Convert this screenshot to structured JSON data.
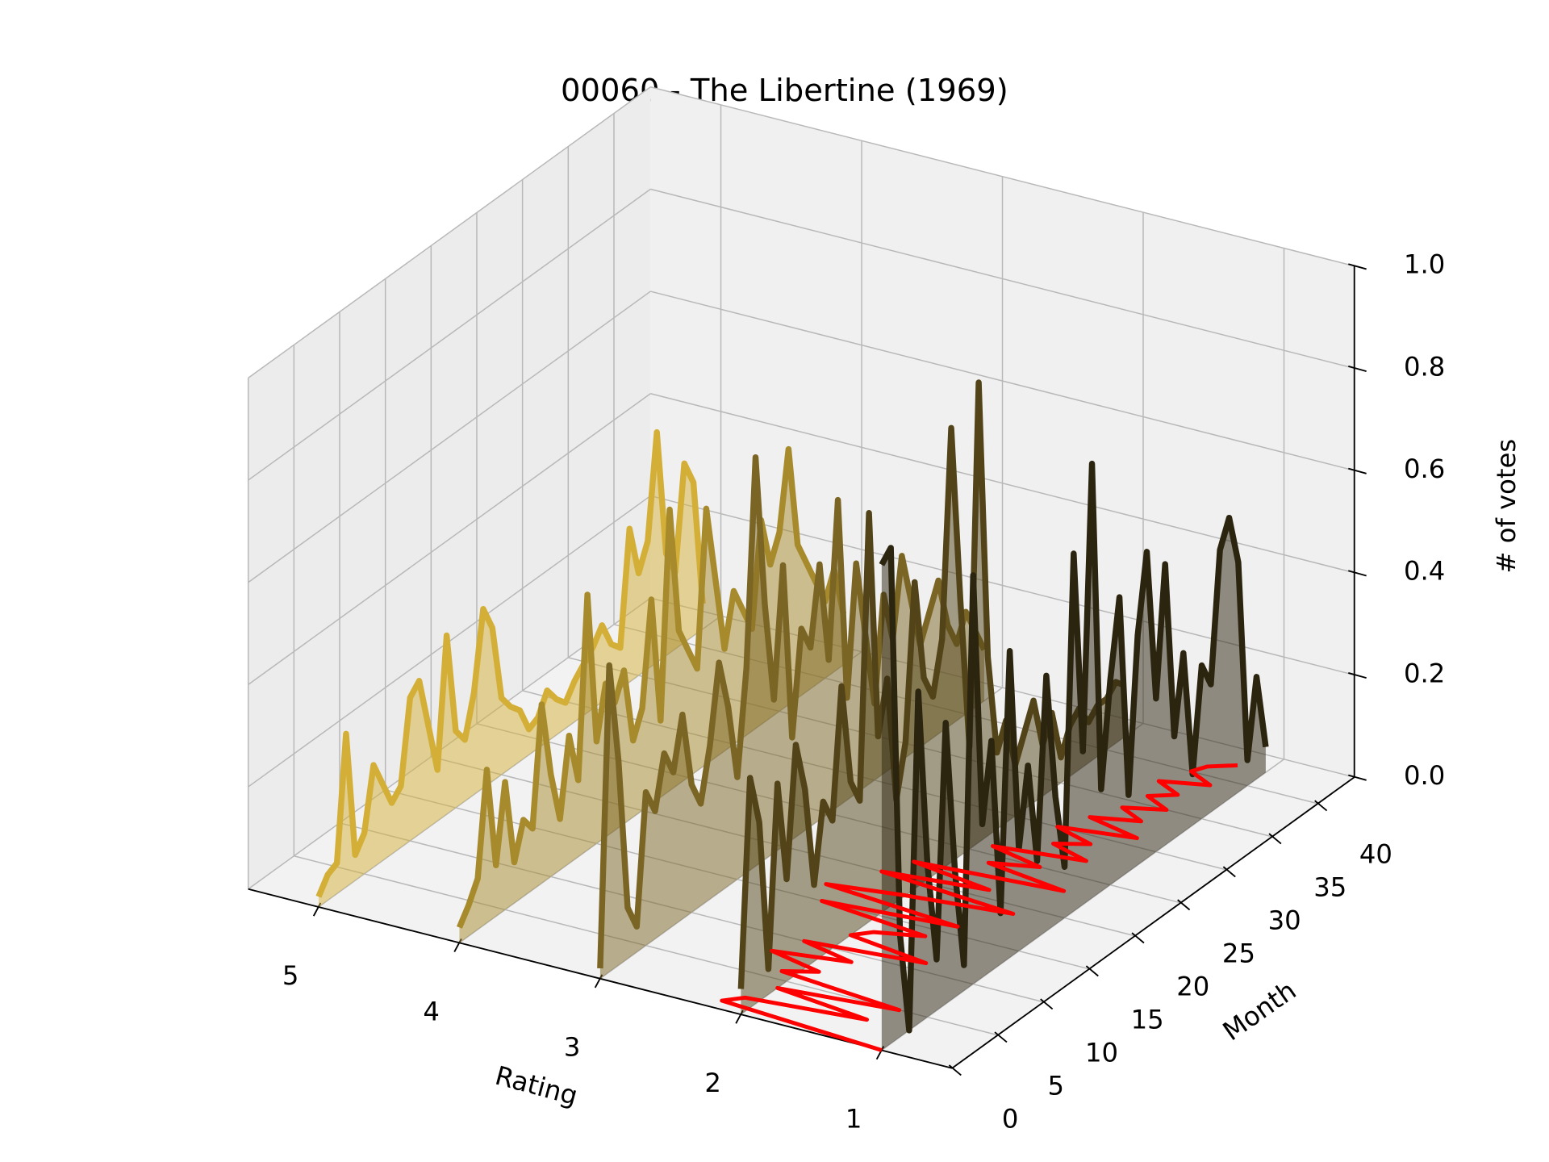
{
  "chart_data": {
    "type": "line3d",
    "title": "00060 - The Libertine (1969)",
    "xlabel": "Rating",
    "ylabel": "Month",
    "zlabel": "# of votes",
    "xlim": [
      0.5,
      5.5
    ],
    "xticks": [
      1,
      2,
      3,
      4,
      5
    ],
    "ylim": [
      0,
      44
    ],
    "yticks": [
      0,
      5,
      10,
      15,
      20,
      25,
      30,
      35,
      40
    ],
    "zlim": [
      0,
      1
    ],
    "zticks": [
      {
        "value": 0,
        "label": "0.0"
      },
      0.2,
      0.4,
      0.6,
      0.8,
      {
        "value": 1,
        "label": "1.0"
      }
    ],
    "grid": true,
    "x": [
      0,
      1,
      2,
      3,
      4,
      5,
      6,
      7,
      8,
      9,
      10,
      11,
      12,
      13,
      14,
      15,
      16,
      17,
      18,
      19,
      20,
      21,
      22,
      23,
      24,
      25,
      26,
      27,
      28,
      29,
      30,
      31,
      32,
      33,
      34,
      35,
      36,
      37,
      38,
      39,
      40,
      41,
      42
    ],
    "series": [
      {
        "rating": 5,
        "color": "#d4af37",
        "values": [
          0.02,
          0.05,
          0.06,
          0.3,
          0.05,
          0.08,
          0.2,
          0.15,
          0.1,
          0.12,
          0.28,
          0.3,
          0.2,
          0.1,
          0.35,
          0.15,
          0.12,
          0.2,
          0.35,
          0.3,
          0.15,
          0.12,
          0.1,
          0.05,
          0.06,
          0.1,
          0.07,
          0.05,
          0.08,
          0.1,
          0.12,
          0.15,
          0.1,
          0.08,
          0.3,
          0.2,
          0.25,
          0.45,
          0.2,
          0.15,
          0.35,
          0.3,
          0.05
        ]
      },
      {
        "rating": 4,
        "color": "#a68a2c",
        "values": [
          0.03,
          0.06,
          0.1,
          0.3,
          0.1,
          0.25,
          0.08,
          0.15,
          0.12,
          0.35,
          0.2,
          0.1,
          0.25,
          0.15,
          0.5,
          0.2,
          0.3,
          0.25,
          0.3,
          0.15,
          0.2,
          0.4,
          0.15,
          0.55,
          0.3,
          0.25,
          0.2,
          0.5,
          0.35,
          0.2,
          0.3,
          0.25,
          0.2,
          0.4,
          0.3,
          0.35,
          0.5,
          0.3,
          0.25,
          0.2,
          0.15,
          0.2,
          0.1
        ]
      },
      {
        "rating": 3,
        "color": "#7b6524",
        "values": [
          0.02,
          0.6,
          0.4,
          0.1,
          0.05,
          0.3,
          0.25,
          0.35,
          0.3,
          0.4,
          0.25,
          0.2,
          0.3,
          0.45,
          0.35,
          0.2,
          0.4,
          0.8,
          0.5,
          0.3,
          0.55,
          0.2,
          0.4,
          0.35,
          0.5,
          0.3,
          0.6,
          0.2,
          0.45,
          0.3,
          0.15,
          0.35,
          0.25,
          0.4,
          0.3,
          0.2,
          0.25,
          0.3,
          0.2,
          0.15,
          0.2,
          0.15,
          0.1
        ]
      },
      {
        "rating": 2,
        "color": "#524418",
        "values": [
          0.05,
          0.45,
          0.35,
          0.05,
          0.4,
          0.2,
          0.45,
          0.35,
          0.15,
          0.3,
          0.25,
          0.5,
          0.3,
          0.25,
          0.8,
          0.35,
          0.45,
          0.2,
          0.3,
          0.6,
          0.4,
          0.35,
          0.45,
          0.85,
          0.5,
          0.2,
          0.9,
          0.35,
          0.15,
          0.2,
          0.1,
          0.15,
          0.2,
          0.1,
          0.15,
          0.05,
          0.1,
          0.12,
          0.08,
          0.1,
          0.1,
          0.12,
          0.1
        ]
      },
      {
        "rating": 1,
        "color": "#2b240f",
        "values": [
          0.95,
          0.97,
          0.2,
          0.0,
          0.65,
          0.3,
          0.1,
          0.55,
          0.25,
          0.05,
          0.8,
          0.3,
          0.45,
          0.1,
          0.6,
          0.2,
          0.35,
          0.15,
          0.5,
          0.25,
          0.1,
          0.7,
          0.3,
          0.85,
          0.2,
          0.4,
          0.55,
          0.15,
          0.45,
          0.6,
          0.3,
          0.55,
          0.2,
          0.35,
          0.1,
          0.3,
          0.25,
          0.5,
          0.55,
          0.45,
          0.05,
          0.2,
          0.05
        ]
      }
    ],
    "mean_rating": {
      "color": "#ff0000",
      "values": [
        1.0,
        2.2,
        2.1,
        1.3,
        2.0,
        1.2,
        2.1,
        1.9,
        2.3,
        1.8,
        2.2,
        1.4,
        2.0,
        1.9,
        1.6,
        2.4,
        1.5,
        2.5,
        2.0,
        1.3,
        2.3,
        1.6,
        2.2,
        1.2,
        1.8,
        1.5,
        1.9,
        1.3,
        1.6,
        1.4,
        1.7,
        1.2,
        1.6,
        1.3,
        1.5,
        1.25,
        1.45,
        1.3,
        1.5,
        1.2,
        1.4,
        1.35,
        1.2
      ]
    }
  }
}
